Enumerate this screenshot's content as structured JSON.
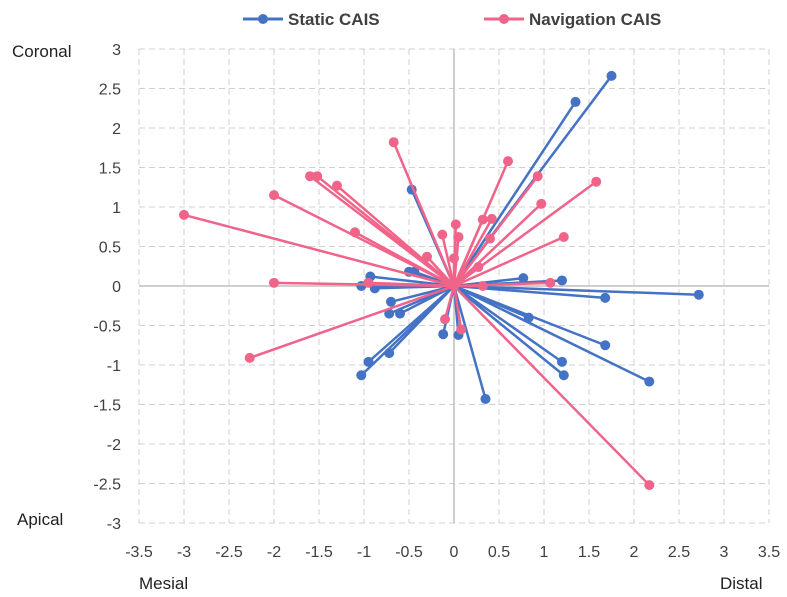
{
  "chart_data": {
    "type": "scatter",
    "xlim": [
      -3.5,
      3.5
    ],
    "ylim": [
      -3,
      3
    ],
    "x_ticks": [
      "-3.5",
      "-3",
      "-2.5",
      "-2",
      "-1.5",
      "-1",
      "-0.5",
      "0",
      "0.5",
      "1",
      "1.5",
      "2",
      "2.5",
      "3",
      "3.5"
    ],
    "y_ticks": [
      "3",
      "2.5",
      "2",
      "1.5",
      "1",
      "0.5",
      "0",
      "-0.5",
      "-1",
      "-1.5",
      "-2",
      "-2.5",
      "-3"
    ],
    "grid": "dashed",
    "legend_position": "top",
    "corner_labels": {
      "top_left": "Coronal",
      "bottom_left": "Apical",
      "x_left": "Mesial",
      "x_right": "Distal"
    },
    "series": [
      {
        "name": "Static CAIS",
        "color": "#4472C4",
        "points": [
          [
            1.75,
            2.66
          ],
          [
            1.35,
            2.33
          ],
          [
            -0.47,
            1.22
          ],
          [
            2.72,
            -0.11
          ],
          [
            1.2,
            0.07
          ],
          [
            0.77,
            0.1
          ],
          [
            1.68,
            -0.15
          ],
          [
            -0.5,
            0.18
          ],
          [
            -0.44,
            0.18
          ],
          [
            -0.93,
            0.12
          ],
          [
            -1.03,
            0.0
          ],
          [
            -0.88,
            -0.03
          ],
          [
            -0.7,
            -0.2
          ],
          [
            -0.72,
            -0.35
          ],
          [
            -0.6,
            -0.35
          ],
          [
            0.83,
            -0.4
          ],
          [
            1.68,
            -0.75
          ],
          [
            2.17,
            -1.21
          ],
          [
            1.2,
            -0.96
          ],
          [
            1.22,
            -1.13
          ],
          [
            -0.12,
            -0.61
          ],
          [
            0.05,
            -0.62
          ],
          [
            -0.72,
            -0.85
          ],
          [
            -0.95,
            -0.96
          ],
          [
            -1.03,
            -1.13
          ],
          [
            0.35,
            -1.43
          ]
        ]
      },
      {
        "name": "Navigation CAIS",
        "color": "#F0648A",
        "points": [
          [
            -3.0,
            0.9
          ],
          [
            -2.0,
            1.15
          ],
          [
            -1.6,
            1.39
          ],
          [
            -1.52,
            1.39
          ],
          [
            -1.3,
            1.27
          ],
          [
            -1.1,
            0.68
          ],
          [
            -0.67,
            1.82
          ],
          [
            0.6,
            1.58
          ],
          [
            0.93,
            1.39
          ],
          [
            1.58,
            1.32
          ],
          [
            0.97,
            1.04
          ],
          [
            0.32,
            0.84
          ],
          [
            0.42,
            0.85
          ],
          [
            0.02,
            0.78
          ],
          [
            -0.13,
            0.65
          ],
          [
            0.05,
            0.62
          ],
          [
            0.4,
            0.6
          ],
          [
            1.22,
            0.62
          ],
          [
            -0.3,
            0.37
          ],
          [
            0.0,
            0.35
          ],
          [
            0.27,
            0.24
          ],
          [
            -2.0,
            0.04
          ],
          [
            -0.95,
            0.04
          ],
          [
            0.32,
            0.0
          ],
          [
            1.07,
            0.04
          ],
          [
            -0.1,
            -0.42
          ],
          [
            0.08,
            -0.55
          ],
          [
            -2.27,
            -0.91
          ],
          [
            2.17,
            -2.52
          ]
        ]
      }
    ]
  }
}
